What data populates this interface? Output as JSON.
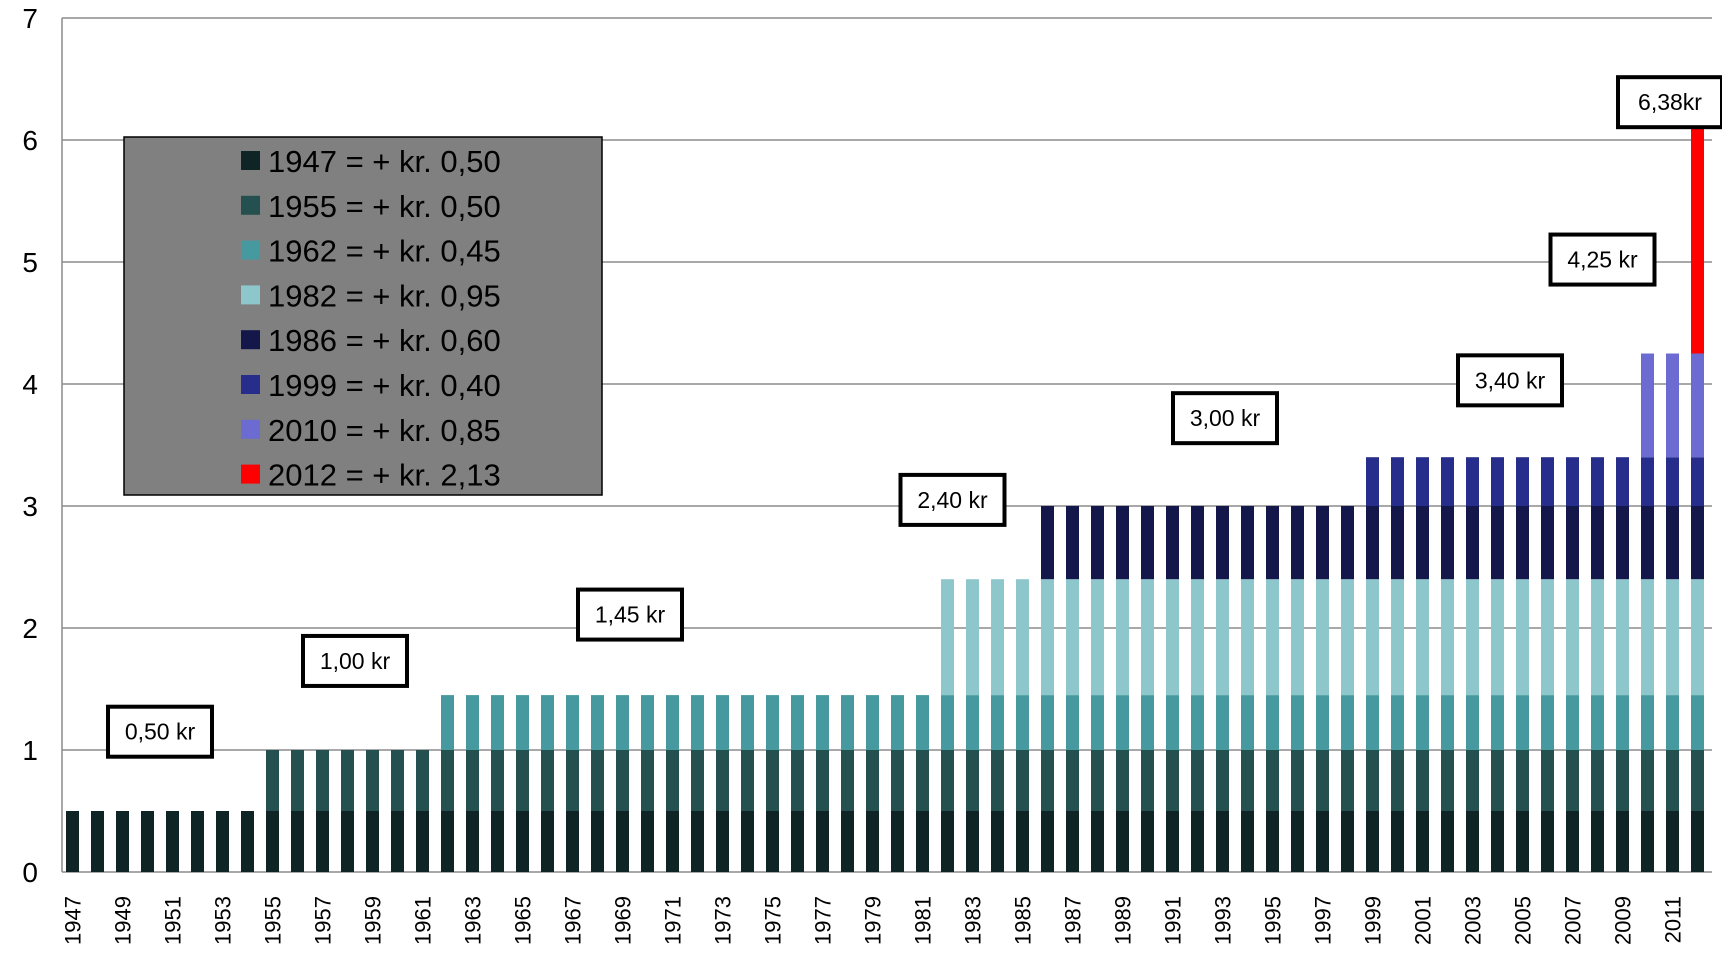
{
  "chart_data": {
    "type": "bar",
    "stacked": true,
    "x_start": 1947,
    "x_end": 2012,
    "x_tick_labels": [
      "1947",
      "1949",
      "1951",
      "1953",
      "1955",
      "1957",
      "1959",
      "1961",
      "1963",
      "1965",
      "1967",
      "1969",
      "1971",
      "1973",
      "1975",
      "1977",
      "1979",
      "1981",
      "1983",
      "1985",
      "1987",
      "1989",
      "1991",
      "1993",
      "1995",
      "1997",
      "1999",
      "2001",
      "2003",
      "2005",
      "2007",
      "2009",
      "2011"
    ],
    "ylim": [
      0,
      7
    ],
    "y_ticks": [
      "0",
      "1",
      "2",
      "3",
      "4",
      "5",
      "6",
      "7"
    ],
    "grid": true,
    "legend_position": "top-left",
    "series": [
      {
        "name": "1947 = + kr. 0,50",
        "start_year": 1947,
        "value": 0.5,
        "color": "#0f2424"
      },
      {
        "name": "1955 = + kr. 0,50",
        "start_year": 1955,
        "value": 0.5,
        "color": "#24504f"
      },
      {
        "name": "1962 = + kr. 0,45",
        "start_year": 1962,
        "value": 0.45,
        "color": "#46999f"
      },
      {
        "name": "1982 = + kr. 0,95",
        "start_year": 1982,
        "value": 0.95,
        "color": "#8dc7cc"
      },
      {
        "name": "1986 = + kr. 0,60",
        "start_year": 1986,
        "value": 0.6,
        "color": "#14174a"
      },
      {
        "name": "1999 = + kr. 0,40",
        "start_year": 1999,
        "value": 0.4,
        "color": "#262d8a"
      },
      {
        "name": "2010 = + kr. 0,85",
        "start_year": 2010,
        "value": 0.85,
        "color": "#6b6bd1"
      },
      {
        "name": "2012 = + kr. 2,13",
        "start_year": 2012,
        "value": 2.13,
        "color": "#ff0000"
      }
    ],
    "annotations": [
      {
        "text": "0,50 kr",
        "year": 1950.5,
        "y": 1.15
      },
      {
        "text": "1,00 kr",
        "year": 1958.3,
        "y": 1.73
      },
      {
        "text": "1,45 kr",
        "year": 1969.3,
        "y": 2.11
      },
      {
        "text": "2,40 kr",
        "year": 1982.2,
        "y": 3.05
      },
      {
        "text": "3,00 kr",
        "year": 1993.1,
        "y": 3.72
      },
      {
        "text": "3,40 kr",
        "year": 2004.5,
        "y": 4.03
      },
      {
        "text": "4,25 kr",
        "year": 2008.2,
        "y": 5.02
      },
      {
        "text": "6,38kr",
        "year": 2010.9,
        "y": 6.31
      }
    ]
  }
}
